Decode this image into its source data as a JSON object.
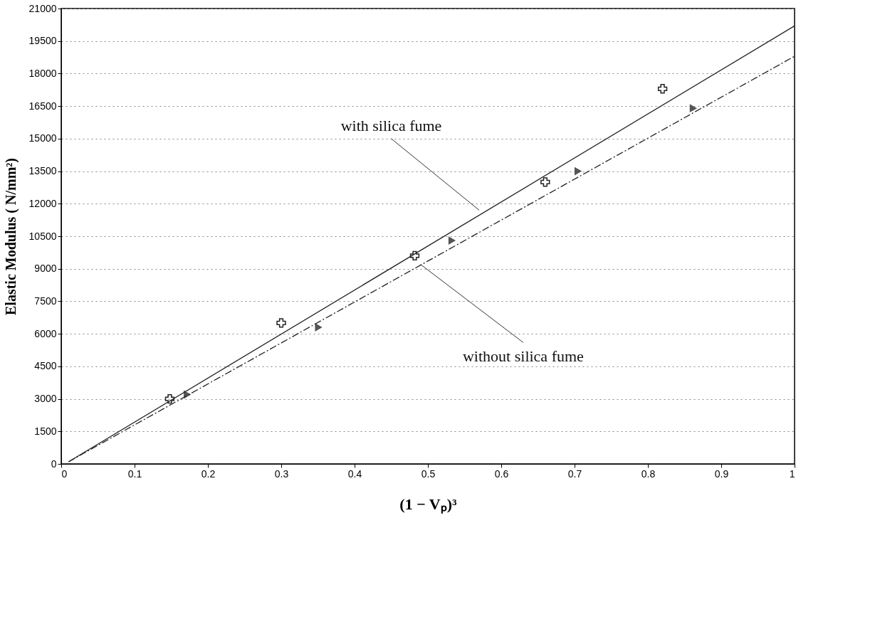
{
  "chart_data": {
    "type": "scatter",
    "xlabel": "(1 − Vₚ)³",
    "ylabel": "Elastic Modulus ( N/mm²)",
    "xlim": [
      0,
      1
    ],
    "xticks": [
      0,
      0.1,
      0.2,
      0.3,
      0.4,
      0.5,
      0.6,
      0.7,
      0.8,
      0.9,
      1
    ],
    "ylim": [
      0,
      21000
    ],
    "yticks": [
      0,
      1500,
      3000,
      4500,
      6000,
      7500,
      9000,
      10500,
      12000,
      13500,
      15000,
      16500,
      18000,
      19500,
      21000
    ],
    "grid": "y",
    "series": [
      {
        "marker": "cross",
        "color": "#222222",
        "x": [
          0.148,
          0.3,
          0.482,
          0.66,
          0.82
        ],
        "values": [
          3000,
          6500,
          9600,
          13000,
          17300
        ]
      },
      {
        "marker": "triangle",
        "color": "#555555",
        "x": [
          0.172,
          0.351,
          0.533,
          0.705,
          0.862
        ],
        "values": [
          3200,
          6300,
          10300,
          13500,
          16400
        ]
      },
      {
        "type": "line",
        "line_style": "solid",
        "color": "#222222",
        "x": [
          0.01,
          1
        ],
        "values": [
          100,
          20200
        ]
      },
      {
        "type": "line",
        "line_style": "dashed",
        "color": "#222222",
        "x": [
          0.01,
          1
        ],
        "values": [
          100,
          18800
        ]
      }
    ],
    "annotations": [
      {
        "text": "with silica fume",
        "x": 0.57,
        "y": 11700
      },
      {
        "text": "without silica fume",
        "x": 0.49,
        "y": 9200
      }
    ]
  }
}
